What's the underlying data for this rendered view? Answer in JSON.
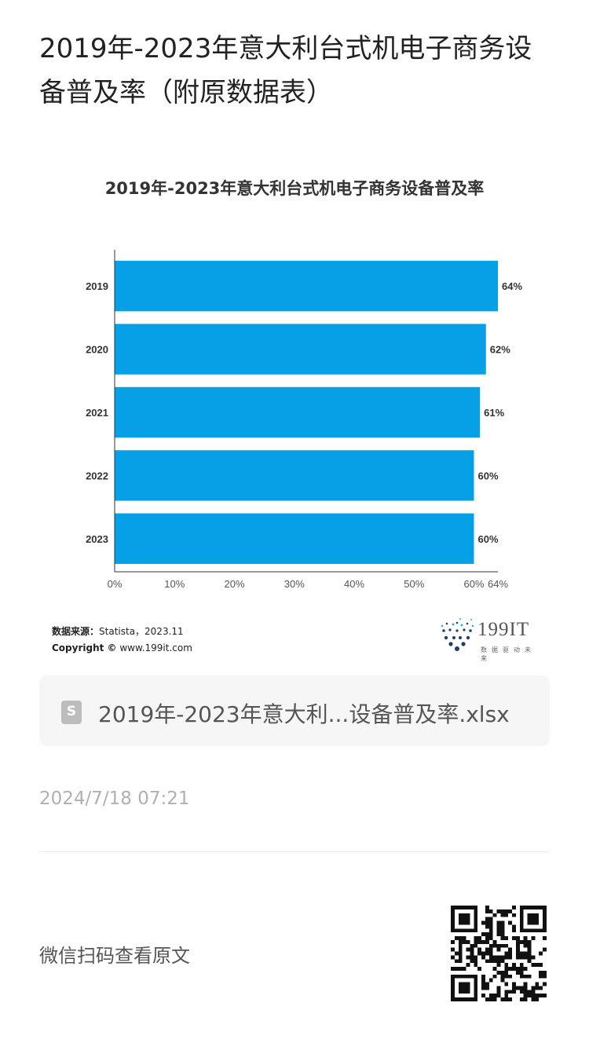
{
  "page": {
    "title": "2019年-2023年意大利台式机电子商务设备普及率（附原数据表）"
  },
  "chart_data": {
    "type": "bar",
    "orientation": "horizontal",
    "title": "2019年-2023年意大利台式机电子商务设备普及率",
    "categories": [
      "2019",
      "2020",
      "2021",
      "2022",
      "2023"
    ],
    "values": [
      64,
      62,
      61,
      60,
      60
    ],
    "value_labels": [
      "64%",
      "62%",
      "61%",
      "60%",
      "60%"
    ],
    "x_ticks": [
      "0%",
      "10%",
      "20%",
      "30%",
      "40%",
      "50%",
      "60%",
      "64%"
    ],
    "x_tick_values": [
      0,
      10,
      20,
      30,
      40,
      50,
      60,
      64
    ],
    "xlim": [
      0,
      64
    ],
    "bar_color": "#06a0e6",
    "grid": false,
    "legend": "none"
  },
  "source": {
    "label": "数据来源：",
    "text": "Statista，2023.11",
    "copyright_label": "Copyright ©",
    "copyright_text": " www.199it.com"
  },
  "logo": {
    "name": "199IT",
    "tagline": "数据驱动未来"
  },
  "attachment": {
    "icon": "spreadsheet-file-icon",
    "icon_letter": "S",
    "name": "2019年-2023年意大利...设备普及率.xlsx"
  },
  "timestamp": "2024/7/18 07:21",
  "footer": {
    "qr_label": "微信扫码查看原文"
  }
}
